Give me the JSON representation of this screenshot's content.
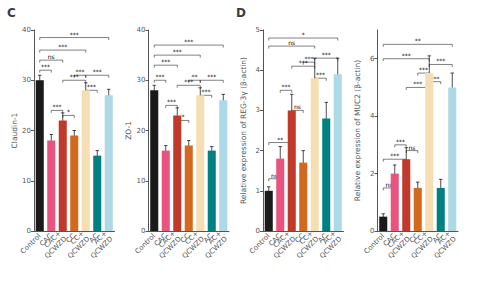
{
  "chart_data": [
    {
      "type": "bar",
      "title": "C",
      "ylabel": "Claudin-1",
      "categories": [
        "Control",
        "CAC",
        "CAC+\nQCWZD",
        "CC",
        "CC+\nQCWZD",
        "AC",
        "AC+\nQCWZD"
      ],
      "values": [
        30,
        18,
        22,
        19,
        28,
        15,
        27
      ],
      "errors": [
        1.0,
        1.2,
        1.5,
        1.0,
        1.5,
        1.0,
        1.2
      ],
      "colors": [
        "#1a1a1a",
        "#e75480",
        "#c0392b",
        "#d2691e",
        "#f5deb3",
        "#008080",
        "#add8e6"
      ],
      "ylim": [
        0,
        40
      ],
      "yticks": [
        0,
        10,
        20,
        30,
        40
      ],
      "grid": false,
      "annotations": [
        {
          "from": "Control",
          "to": "CAC",
          "text": "***",
          "y": 32
        },
        {
          "from": "CAC",
          "to": "CAC+\nQCWZD",
          "text": "***",
          "y": 24
        },
        {
          "from": "Control",
          "to": "CAC+\nQCWZD",
          "text": "ns",
          "y": 34
        },
        {
          "from": "CAC+\nQCWZD",
          "to": "CC",
          "text": "*",
          "y": 23
        },
        {
          "from": "CAC+\nQCWZD",
          "to": "CC+\nQCWZD",
          "text": "***",
          "y": 30
        },
        {
          "from": "CC",
          "to": "CC+\nQCWZD",
          "text": "***",
          "y": 31
        },
        {
          "from": "Control",
          "to": "CC+\nQCWZD",
          "text": "***",
          "y": 36
        },
        {
          "from": "CC+\nQCWZD",
          "to": "AC",
          "text": "***",
          "y": 28
        },
        {
          "from": "CC+\nQCWZD",
          "to": "AC+\nQCWZD",
          "text": "***",
          "y": 31
        },
        {
          "from": "Control",
          "to": "AC+\nQCWZD",
          "text": "***",
          "y": 38.5
        }
      ]
    },
    {
      "type": "bar",
      "ylabel": "ZO-1",
      "categories": [
        "Control",
        "CAC",
        "CAC+\nQCWZD",
        "CC",
        "CC+\nQCWZD",
        "AC",
        "AC+\nQCWZD"
      ],
      "values": [
        28,
        16,
        23,
        17,
        27,
        16,
        26
      ],
      "errors": [
        1.0,
        1.0,
        1.5,
        1.0,
        1.5,
        0.8,
        1.2
      ],
      "colors": [
        "#1a1a1a",
        "#e75480",
        "#c0392b",
        "#d2691e",
        "#f5deb3",
        "#008080",
        "#add8e6"
      ],
      "ylim": [
        0,
        40
      ],
      "yticks": [
        0,
        10,
        20,
        30,
        40
      ],
      "grid": false,
      "annotations": [
        {
          "from": "Control",
          "to": "CAC",
          "text": "***",
          "y": 30
        },
        {
          "from": "CAC",
          "to": "CAC+\nQCWZD",
          "text": "***",
          "y": 25
        },
        {
          "from": "Control",
          "to": "CAC+\nQCWZD",
          "text": "***",
          "y": 33
        },
        {
          "from": "CAC+\nQCWZD",
          "to": "CC",
          "text": "*",
          "y": 22
        },
        {
          "from": "CAC+\nQCWZD",
          "to": "CC+\nQCWZD",
          "text": "***",
          "y": 29
        },
        {
          "from": "CC",
          "to": "CC+\nQCWZD",
          "text": "**",
          "y": 30
        },
        {
          "from": "Control",
          "to": "CC+\nQCWZD",
          "text": "***",
          "y": 35
        },
        {
          "from": "CC+\nQCWZD",
          "to": "AC",
          "text": "***",
          "y": 27
        },
        {
          "from": "CC+\nQCWZD",
          "to": "AC+\nQCWZD",
          "text": "***",
          "y": 30
        },
        {
          "from": "Control",
          "to": "AC+\nQCWZD",
          "text": "***",
          "y": 37
        }
      ]
    },
    {
      "type": "bar",
      "title": "D",
      "ylabel": "Relative expression of REG-3γ (β-actin)",
      "categories": [
        "Control",
        "CAC",
        "CAC+\nQCWZD",
        "CC",
        "CC+\nQCWZD",
        "AC",
        "AC+\nQCWZD"
      ],
      "values": [
        1.0,
        1.8,
        3.0,
        1.7,
        3.8,
        2.8,
        3.9
      ],
      "errors": [
        0.1,
        0.3,
        0.4,
        0.3,
        0.5,
        0.4,
        0.4
      ],
      "colors": [
        "#1a1a1a",
        "#e75480",
        "#c0392b",
        "#d2691e",
        "#f5deb3",
        "#008080",
        "#add8e6"
      ],
      "ylim": [
        0,
        5
      ],
      "yticks": [
        0,
        1,
        2,
        3,
        4,
        5
      ],
      "grid": false,
      "annotations": [
        {
          "from": "Control",
          "to": "CAC",
          "text": "ns",
          "y": 1.3
        },
        {
          "from": "Control",
          "to": "CAC+\nQCWZD",
          "text": "**",
          "y": 2.2
        },
        {
          "from": "CAC",
          "to": "CAC+\nQCWZD",
          "text": "***",
          "y": 3.5
        },
        {
          "from": "CAC+\nQCWZD",
          "to": "CC",
          "text": "ns",
          "y": 3.0
        },
        {
          "from": "CAC+\nQCWZD",
          "to": "CC+\nQCWZD",
          "text": "***",
          "y": 4.1
        },
        {
          "from": "CC",
          "to": "CC+\nQCWZD",
          "text": "***",
          "y": 4.2
        },
        {
          "from": "Control",
          "to": "CC+\nQCWZD",
          "text": "ns",
          "y": 4.6
        },
        {
          "from": "CC+\nQCWZD",
          "to": "AC",
          "text": "***",
          "y": 3.8
        },
        {
          "from": "CC+\nQCWZD",
          "to": "AC+\nQCWZD",
          "text": "***",
          "y": 4.3
        },
        {
          "from": "Control",
          "to": "AC+\nQCWZD",
          "text": "*",
          "y": 4.8
        }
      ]
    },
    {
      "type": "bar",
      "ylabel": "Relative expression of MUC2 (β-actin)",
      "categories": [
        "Control",
        "CAC",
        "CAC+\nQCWZD",
        "CC",
        "CC+\nQCWZD",
        "AC",
        "AC+\nQCWZD"
      ],
      "values": [
        0.5,
        2.0,
        2.5,
        1.5,
        5.5,
        1.5,
        5.0
      ],
      "errors": [
        0.1,
        0.3,
        0.4,
        0.2,
        0.6,
        0.3,
        0.5
      ],
      "colors": [
        "#1a1a1a",
        "#e75480",
        "#c0392b",
        "#d2691e",
        "#f5deb3",
        "#008080",
        "#add8e6"
      ],
      "ylim": [
        0,
        7
      ],
      "yticks": [
        0,
        2,
        4,
        6
      ],
      "grid": false,
      "annotations": [
        {
          "from": "Control",
          "to": "CAC",
          "text": "ns",
          "y": 1.5
        },
        {
          "from": "Control",
          "to": "CAC+\nQCWZD",
          "text": "***",
          "y": 2.5
        },
        {
          "from": "CAC",
          "to": "CAC+\nQCWZD",
          "text": "***",
          "y": 3.0
        },
        {
          "from": "CAC+\nQCWZD",
          "to": "CC",
          "text": "ns",
          "y": 2.8
        },
        {
          "from": "CAC+\nQCWZD",
          "to": "CC+\nQCWZD",
          "text": "***",
          "y": 5.0
        },
        {
          "from": "CC",
          "to": "CC+\nQCWZD",
          "text": "***",
          "y": 5.5
        },
        {
          "from": "Control",
          "to": "CC+\nQCWZD",
          "text": "***",
          "y": 6.0
        },
        {
          "from": "CC+\nQCWZD",
          "to": "AC",
          "text": "***",
          "y": 5.2
        },
        {
          "from": "CC+\nQCWZD",
          "to": "AC+\nQCWZD",
          "text": "***",
          "y": 5.8
        },
        {
          "from": "Control",
          "to": "AC+\nQCWZD",
          "text": "**",
          "y": 6.5
        }
      ]
    }
  ]
}
